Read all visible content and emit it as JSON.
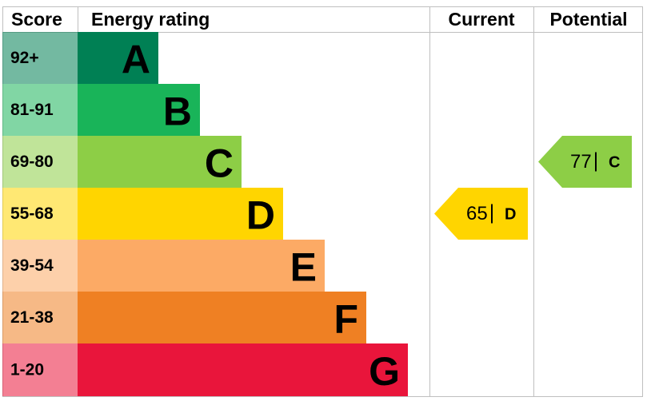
{
  "header": {
    "score": "Score",
    "rating": "Energy rating",
    "current": "Current",
    "potential": "Potential"
  },
  "bands": [
    {
      "score": "92+",
      "rating": "A",
      "color": "#008054"
    },
    {
      "score": "81-91",
      "rating": "B",
      "color": "#19b459"
    },
    {
      "score": "69-80",
      "rating": "C",
      "color": "#8dce46"
    },
    {
      "score": "55-68",
      "rating": "D",
      "color": "#ffd500"
    },
    {
      "score": "39-54",
      "rating": "E",
      "color": "#fcaa65"
    },
    {
      "score": "21-38",
      "rating": "F",
      "color": "#ef8023"
    },
    {
      "score": "1-20",
      "rating": "G",
      "color": "#e9153b"
    }
  ],
  "current": {
    "score": 65,
    "rating": "D"
  },
  "potential": {
    "score": 77,
    "rating": "C"
  }
}
